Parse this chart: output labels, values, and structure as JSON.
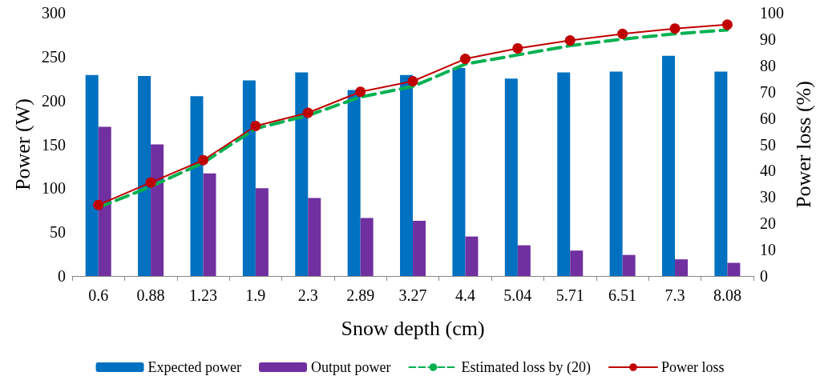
{
  "chart_data": {
    "type": "bar",
    "xlabel": "Snow depth (cm)",
    "ylabel": "Power (W)",
    "y2label": "Power loss (%)",
    "categories": [
      "0.6",
      "0.88",
      "1.23",
      "1.9",
      "2.3",
      "2.89",
      "3.27",
      "4.4",
      "5.04",
      "5.71",
      "6.51",
      "7.3",
      "8.08"
    ],
    "series": [
      {
        "name": "Expected power",
        "color": "#0070c0",
        "values": [
          229,
          228,
          205,
          223,
          232,
          212,
          229,
          237,
          225,
          232,
          233,
          251,
          233
        ]
      },
      {
        "name": "Output power",
        "color": "#7030a0",
        "values": [
          170,
          150,
          117,
          100,
          89,
          66,
          63,
          45,
          35,
          29,
          24,
          19,
          15
        ]
      },
      {
        "name": "Estimated loss by (20)",
        "type": "line",
        "axis": "y2",
        "color": "#00b050",
        "line_style": "dashed",
        "marker": "none",
        "values": [
          26,
          34,
          43,
          56,
          61,
          68,
          72,
          80.5,
          84,
          87.5,
          90,
          92,
          93.5
        ]
      },
      {
        "name": "Power loss",
        "type": "line",
        "axis": "y2",
        "color": "#c00000",
        "line_style": "solid",
        "marker": "circle",
        "values": [
          27,
          35.5,
          44,
          57,
          62,
          70,
          74,
          82.5,
          86.5,
          89.5,
          92,
          94,
          95.5
        ]
      }
    ],
    "ylim": [
      0,
      300
    ],
    "yticks": [
      0,
      50,
      100,
      150,
      200,
      250,
      300
    ],
    "y2lim": [
      0,
      100
    ],
    "y2ticks": [
      0,
      10,
      20,
      30,
      40,
      50,
      60,
      70,
      80,
      90,
      100
    ],
    "grid": false,
    "legend": "bottom"
  }
}
